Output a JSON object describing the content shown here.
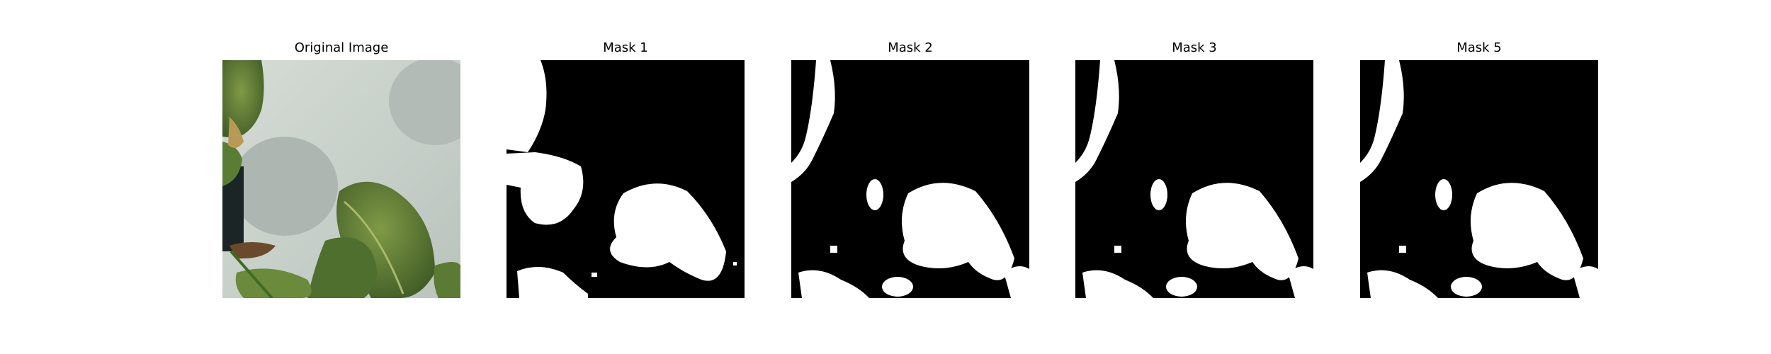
{
  "figure": {
    "panels": [
      {
        "id": "original",
        "title": "Original Image",
        "kind": "photo"
      },
      {
        "id": "mask1",
        "title": "Mask 1",
        "kind": "mask"
      },
      {
        "id": "mask2",
        "title": "Mask 2",
        "kind": "mask"
      },
      {
        "id": "mask3",
        "title": "Mask 3",
        "kind": "mask"
      },
      {
        "id": "mask5",
        "title": "Mask 5",
        "kind": "mask"
      }
    ],
    "colors": {
      "mask_foreground": "#ffffff",
      "mask_background": "#000000",
      "photo_background": "#c9d1cb",
      "leaf": "#5f7d3a",
      "leaf_dark": "#3f5a25"
    }
  }
}
